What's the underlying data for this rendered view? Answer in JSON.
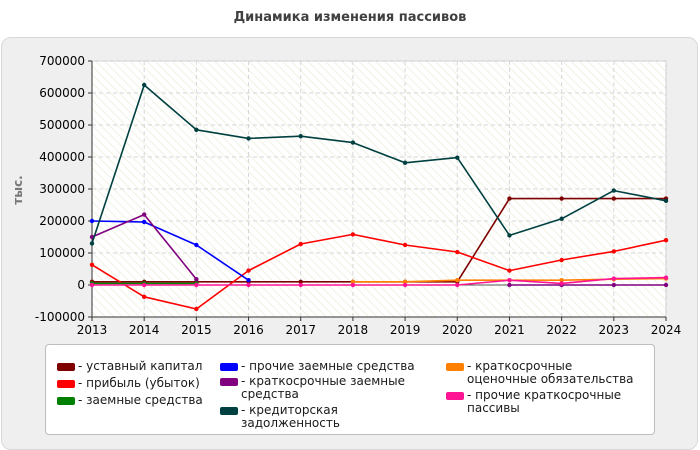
{
  "chart_data": {
    "type": "line",
    "title": "Динамика изменения пассивов",
    "ylabel": "тыс.",
    "xlabel": "",
    "x": [
      2013,
      2014,
      2015,
      2016,
      2017,
      2018,
      2019,
      2020,
      2021,
      2022,
      2023,
      2024
    ],
    "x_tick_labels": [
      "2013",
      "2014",
      "2015",
      "2016",
      "2017",
      "2018",
      "2019",
      "2020",
      "2021",
      "2022",
      "2023",
      "2024"
    ],
    "ylim": [
      -100000,
      700000
    ],
    "y_ticks": [
      -100000,
      0,
      100000,
      200000,
      300000,
      400000,
      500000,
      600000,
      700000
    ],
    "y_tick_labels": [
      "-100000",
      "0",
      "100000",
      "200000",
      "300000",
      "400000",
      "500000",
      "600000",
      "700000"
    ],
    "grid": true,
    "legend_position": "bottom",
    "series": [
      {
        "name": "- уставный капитал",
        "color": "#7f0000",
        "values": [
          10000,
          10000,
          10000,
          10000,
          10000,
          10000,
          10000,
          10000,
          270000,
          270000,
          270000,
          270000
        ]
      },
      {
        "name": "- прибыль (убыток)",
        "color": "#ff0000",
        "values": [
          63000,
          -37000,
          -75000,
          45000,
          128000,
          158000,
          125000,
          103000,
          45000,
          78000,
          105000,
          140000
        ]
      },
      {
        "name": "- заемные средства",
        "color": "#008000",
        "values": [
          5000,
          5000,
          5000,
          null,
          null,
          null,
          null,
          null,
          null,
          null,
          null,
          null
        ]
      },
      {
        "name": "- прочие заемные средства",
        "color": "#0000ff",
        "values": [
          200000,
          197000,
          125000,
          15000,
          null,
          null,
          null,
          null,
          null,
          null,
          null,
          null
        ]
      },
      {
        "name": "- краткосрочные заемные средства",
        "color": "#800080",
        "values": [
          150000,
          220000,
          18000,
          null,
          null,
          null,
          null,
          null,
          0,
          0,
          0,
          0
        ]
      },
      {
        "name": "- кредиторская задолженность",
        "color": "#004040",
        "values": [
          130000,
          625000,
          485000,
          458000,
          465000,
          445000,
          382000,
          398000,
          155000,
          207000,
          295000,
          263000
        ]
      },
      {
        "name": "- краткосрочные оценочные обязательства",
        "color": "#ff8000",
        "values": [
          null,
          null,
          null,
          null,
          null,
          10000,
          10000,
          15000,
          15000,
          15000,
          18000,
          20000
        ]
      },
      {
        "name": "- прочие краткосрочные пассивы",
        "color": "#ff1493",
        "values": [
          0,
          0,
          0,
          0,
          0,
          0,
          0,
          0,
          15000,
          5000,
          20000,
          23000
        ]
      }
    ]
  }
}
